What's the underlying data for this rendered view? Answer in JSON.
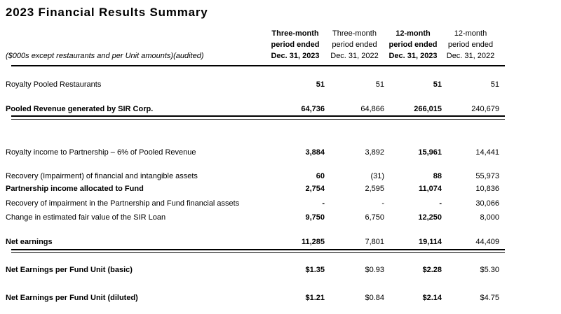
{
  "title": "2023 Financial Results Summary",
  "table": {
    "note": "($000s except restaurants and per Unit amounts)(audited)",
    "columns": [
      {
        "lines": [
          "Three-month",
          "period ended",
          "Dec. 31, 2023"
        ],
        "emphasis": "bold"
      },
      {
        "lines": [
          "Three-month",
          "period ended",
          "Dec. 31, 2022"
        ],
        "emphasis": "regular"
      },
      {
        "lines": [
          "12-month",
          "period ended",
          "Dec. 31, 2023"
        ],
        "emphasis": "bold"
      },
      {
        "lines": [
          "12-month",
          "period ended",
          "Dec. 31, 2022"
        ],
        "emphasis": "regular"
      }
    ],
    "rows": [
      {
        "label": "Royalty Pooled Restaurants",
        "values": [
          "51",
          "51",
          "51",
          "51"
        ]
      },
      {
        "label": "Pooled Revenue generated by SIR Corp.",
        "values": [
          "64,736",
          "64,866",
          "266,015",
          "240,679"
        ]
      },
      {
        "label": "Royalty income to Partnership – 6% of Pooled Revenue",
        "values": [
          "3,884",
          "3,892",
          "15,961",
          "14,441"
        ]
      },
      {
        "label": "Recovery (Impairment) of financial and intangible assets",
        "values": [
          "60",
          "(31)",
          "88",
          "55,973"
        ]
      },
      {
        "label": "Partnership income allocated to Fund",
        "values": [
          "2,754",
          "2,595",
          "11,074",
          "10,836"
        ]
      },
      {
        "label": "Recovery of impairment in the Partnership and Fund financial assets",
        "values": [
          "-",
          "-",
          "-",
          "30,066"
        ]
      },
      {
        "label": "Change in estimated fair value of the SIR Loan",
        "values": [
          "9,750",
          "6,750",
          "12,250",
          "8,000"
        ]
      },
      {
        "label": "Net earnings",
        "values": [
          "11,285",
          "7,801",
          "19,114",
          "44,409"
        ]
      },
      {
        "label": "Net Earnings per Fund Unit (basic)",
        "values": [
          "$1.35",
          "$0.93",
          "$2.28",
          "$5.30"
        ]
      },
      {
        "label": "Net Earnings per Fund Unit (diluted)",
        "values": [
          "$1.21",
          "$0.84",
          "$2.14",
          "$4.75"
        ]
      }
    ]
  }
}
